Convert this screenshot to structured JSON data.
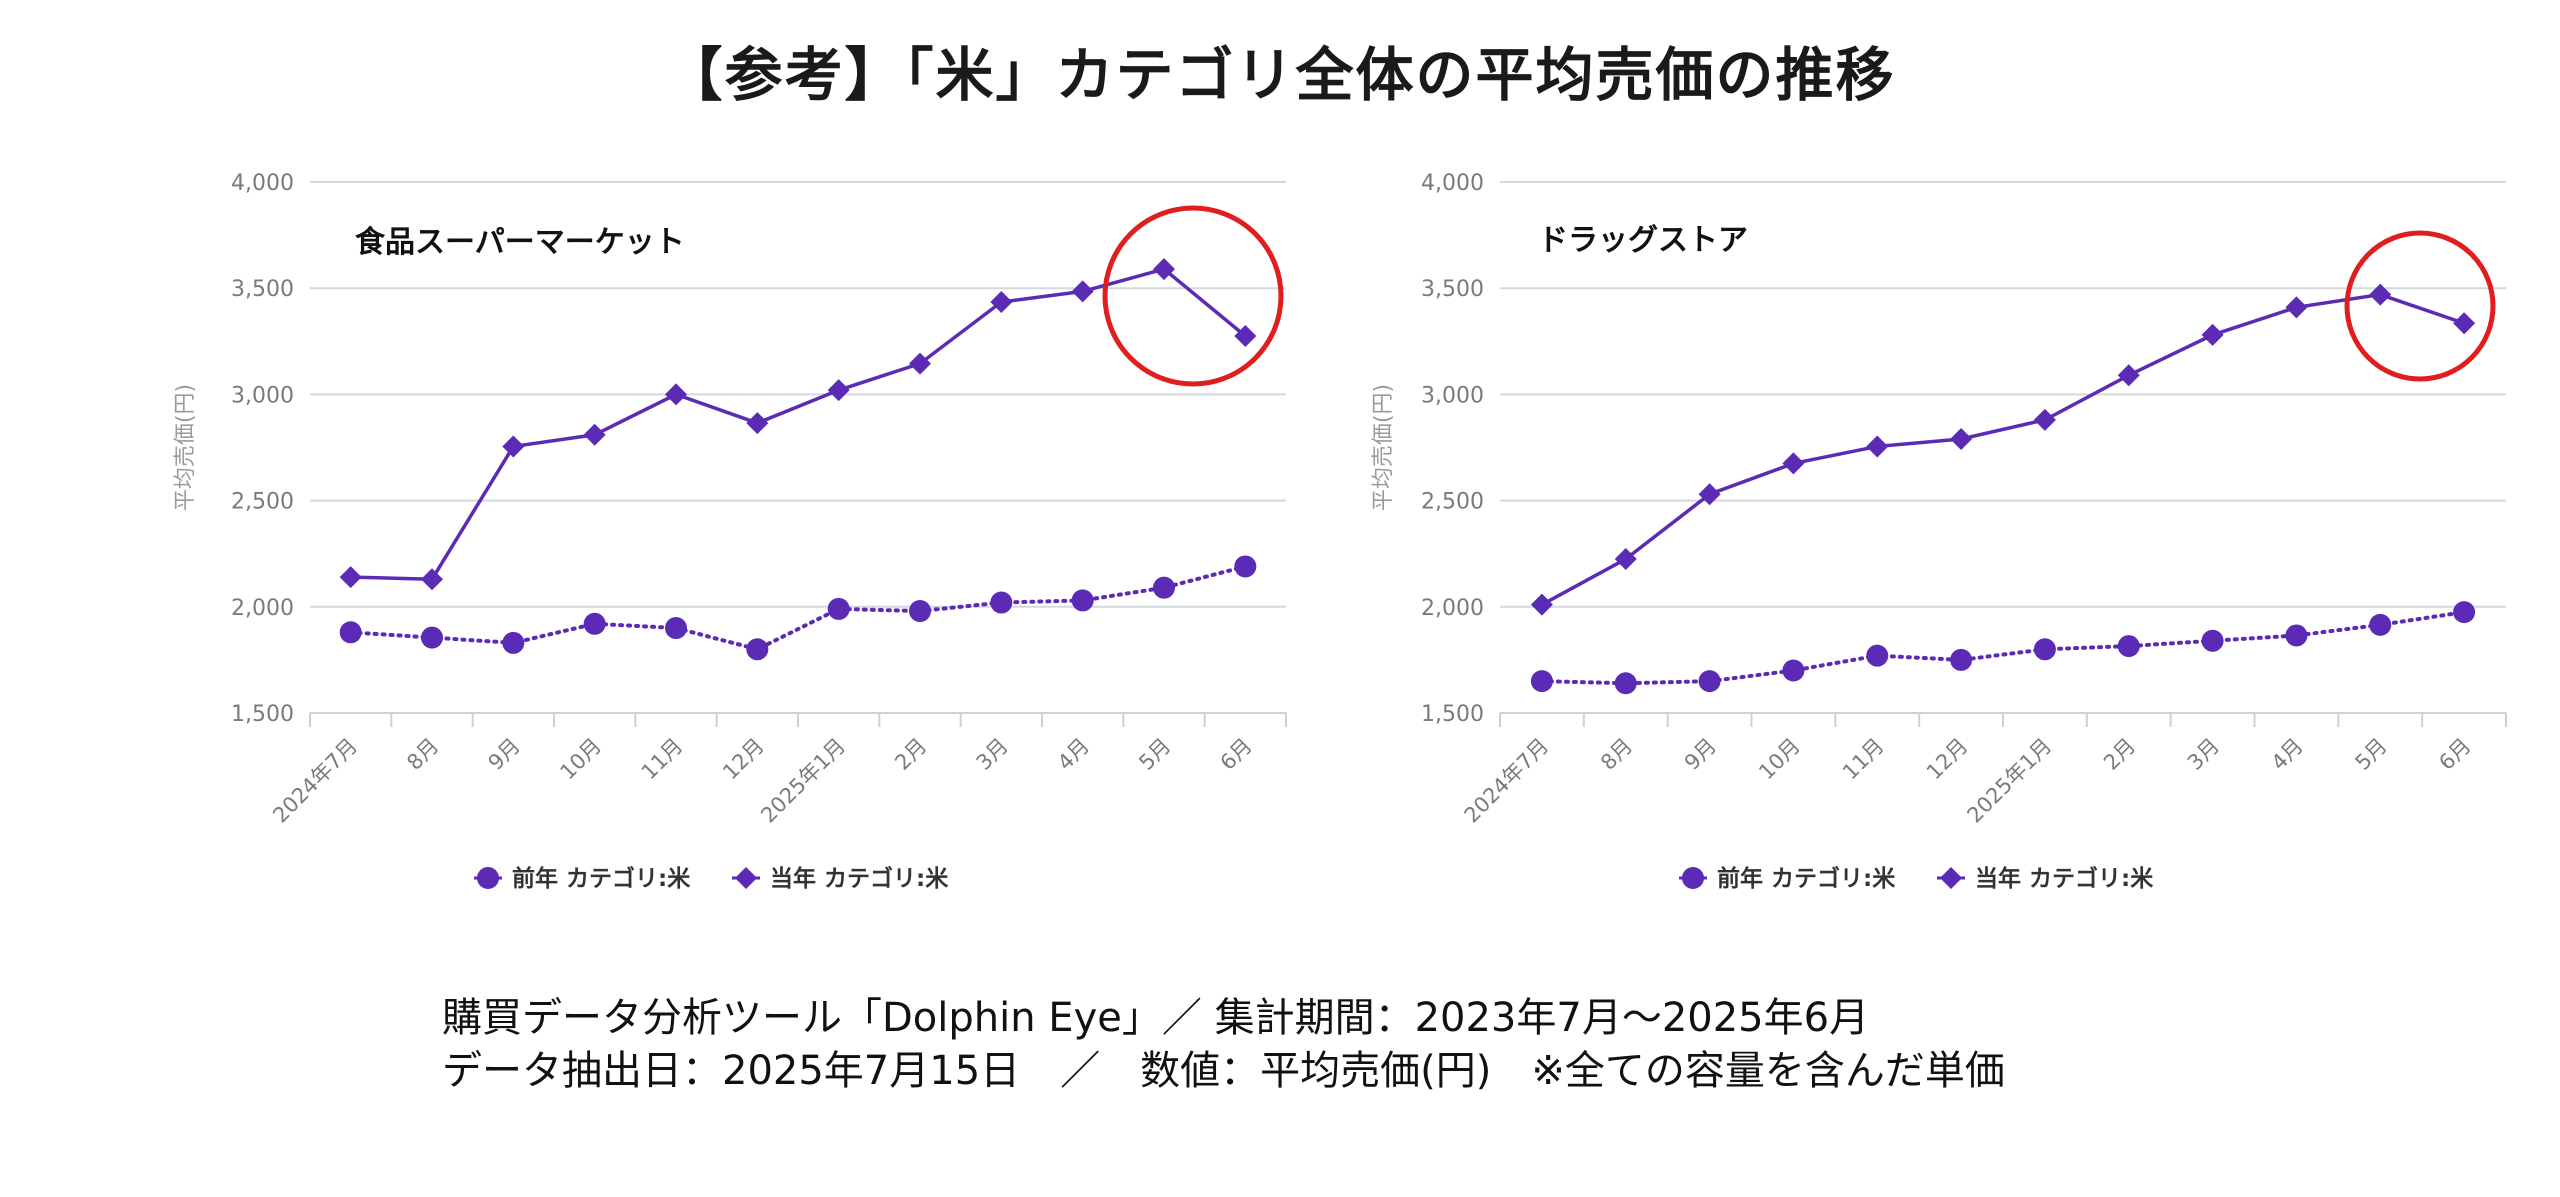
{
  "title": "【参考】「米」カテゴリ全体の平均売価の推移",
  "footer": {
    "line1": "購買データ分析ツール「Dolphin Eye」／ 集計期間：2023年7月～2025年6月",
    "line2": "データ抽出日：2025年7月15日　／　数値：平均売価(円)　※全ての容量を含んだ単価"
  },
  "colors": {
    "series": "#5b2bb5",
    "grid": "#d5d9de",
    "axis_text": "#7a7a7a",
    "highlight_circle": "#e01e1e"
  },
  "chart_data": [
    {
      "type": "line",
      "title": "食品スーパーマーケット",
      "ylabel": "平均売価(円)",
      "ylim": [
        1500,
        4000
      ],
      "yticks": [
        "4,000",
        "3,500",
        "3,000",
        "2,500",
        "2,000",
        "1,500"
      ],
      "categories": [
        "2024年7月",
        "8月",
        "9月",
        "10月",
        "11月",
        "12月",
        "2025年1月",
        "2月",
        "3月",
        "4月",
        "5月",
        "6月"
      ],
      "series": [
        {
          "name": "前年 カテゴリ:米",
          "marker": "circle",
          "style": "dotted",
          "values": [
            1880,
            1855,
            1830,
            1920,
            1900,
            1800,
            1990,
            1980,
            2020,
            2030,
            2090,
            2190
          ]
        },
        {
          "name": "当年 カテゴリ:米",
          "marker": "diamond",
          "style": "solid",
          "values": [
            2140,
            2130,
            2755,
            2810,
            3000,
            2865,
            3020,
            3145,
            3435,
            3485,
            3590,
            3275
          ]
        }
      ],
      "legend": "bottom",
      "grid": true,
      "annotation": "red circle around 5月–6月 current-year points"
    },
    {
      "type": "line",
      "title": "ドラッグストア",
      "ylabel": "平均売価(円)",
      "ylim": [
        1500,
        4000
      ],
      "yticks": [
        "4,000",
        "3,500",
        "3,000",
        "2,500",
        "2,000",
        "1,500"
      ],
      "categories": [
        "2024年7月",
        "8月",
        "9月",
        "10月",
        "11月",
        "12月",
        "2025年1月",
        "2月",
        "3月",
        "4月",
        "5月",
        "6月"
      ],
      "series": [
        {
          "name": "前年 カテゴリ:米",
          "marker": "circle",
          "style": "dotted",
          "values": [
            1650,
            1640,
            1650,
            1700,
            1770,
            1750,
            1800,
            1815,
            1840,
            1865,
            1915,
            1975
          ]
        },
        {
          "name": "当年 カテゴリ:米",
          "marker": "diamond",
          "style": "solid",
          "values": [
            2010,
            2225,
            2530,
            2675,
            2755,
            2790,
            2880,
            3090,
            3280,
            3410,
            3470,
            3335
          ]
        }
      ],
      "legend": "bottom",
      "grid": true,
      "annotation": "red circle around 5月–6月 current-year points"
    }
  ]
}
